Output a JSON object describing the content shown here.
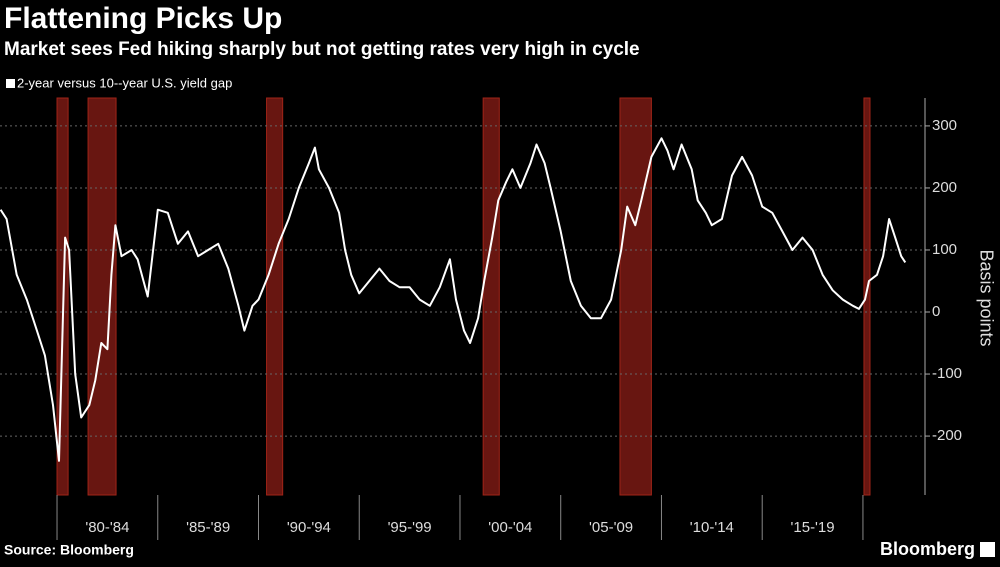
{
  "chart_data": {
    "type": "line",
    "title": "Flattening Picks Up",
    "subtitle": "Market sees Fed hiking sharply but not getting rates very high in cycle",
    "y_label": "Basis points",
    "source": "Source: Bloomberg",
    "brand": "Bloomberg",
    "background": "#000000",
    "grid": true,
    "xlim": [
      1977.17,
      2023.08
    ],
    "ylim": [
      -295,
      345
    ],
    "yticks": [
      -200,
      -100,
      0,
      100,
      200,
      300
    ],
    "xticks": [
      {
        "value": 1982.5,
        "label": "'80-'84"
      },
      {
        "value": 1987.5,
        "label": "'85-'89"
      },
      {
        "value": 1992.5,
        "label": "'90-'94"
      },
      {
        "value": 1997.5,
        "label": "'95-'99"
      },
      {
        "value": 2002.5,
        "label": "'00-'04"
      },
      {
        "value": 2007.5,
        "label": "'05-'09"
      },
      {
        "value": 2012.5,
        "label": "'10-'14"
      },
      {
        "value": 2017.5,
        "label": "'15-'19"
      }
    ],
    "shaded_periods": [
      [
        1980.0,
        1980.55
      ],
      [
        1981.54,
        1982.93
      ],
      [
        1990.4,
        1991.2
      ],
      [
        2001.15,
        2001.95
      ],
      [
        2007.94,
        2009.5
      ],
      [
        2020.05,
        2020.35
      ]
    ],
    "shade_color": "#7a1a14",
    "series": [
      {
        "name": "2-year versus 10--year U.S. yield gap",
        "color": "#ffffff",
        "x": [
          1977.2,
          1977.5,
          1978.0,
          1978.5,
          1979.0,
          1979.4,
          1979.8,
          1980.1,
          1980.4,
          1980.6,
          1980.9,
          1981.2,
          1981.6,
          1981.9,
          1982.2,
          1982.5,
          1982.7,
          1982.9,
          1983.2,
          1983.7,
          1984.0,
          1984.5,
          1985.0,
          1985.5,
          1986.0,
          1986.5,
          1987.0,
          1987.5,
          1988.0,
          1988.5,
          1989.0,
          1989.3,
          1989.7,
          1990.0,
          1990.5,
          1991.0,
          1991.5,
          1992.0,
          1992.5,
          1992.8,
          1993.0,
          1993.5,
          1994.0,
          1994.3,
          1994.6,
          1995.0,
          1995.5,
          1996.0,
          1996.5,
          1997.0,
          1997.5,
          1998.0,
          1998.5,
          1999.0,
          1999.5,
          1999.8,
          2000.2,
          2000.5,
          2000.9,
          2001.2,
          2001.6,
          2001.9,
          2002.3,
          2002.6,
          2003.0,
          2003.5,
          2003.8,
          2004.2,
          2004.5,
          2005.0,
          2005.5,
          2006.0,
          2006.5,
          2007.0,
          2007.5,
          2008.0,
          2008.3,
          2008.7,
          2009.0,
          2009.5,
          2010.0,
          2010.3,
          2010.6,
          2011.0,
          2011.5,
          2011.8,
          2012.2,
          2012.5,
          2013.0,
          2013.5,
          2014.0,
          2014.5,
          2015.0,
          2015.5,
          2016.0,
          2016.5,
          2017.0,
          2017.5,
          2018.0,
          2018.5,
          2019.0,
          2019.5,
          2019.8,
          2020.1,
          2020.3,
          2020.7,
          2021.0,
          2021.3,
          2021.6,
          2021.9,
          2022.1
        ],
        "values": [
          165,
          150,
          60,
          20,
          -30,
          -70,
          -150,
          -240,
          120,
          100,
          -100,
          -170,
          -150,
          -110,
          -50,
          -60,
          60,
          140,
          90,
          100,
          85,
          25,
          165,
          160,
          110,
          130,
          90,
          100,
          110,
          70,
          10,
          -30,
          10,
          20,
          60,
          110,
          150,
          200,
          240,
          265,
          230,
          200,
          160,
          100,
          60,
          30,
          50,
          70,
          50,
          40,
          40,
          20,
          10,
          40,
          85,
          20,
          -30,
          -50,
          -10,
          50,
          120,
          180,
          210,
          230,
          200,
          240,
          270,
          240,
          200,
          130,
          50,
          10,
          -10,
          -10,
          20,
          100,
          170,
          140,
          180,
          250,
          280,
          260,
          230,
          270,
          230,
          180,
          160,
          140,
          150,
          220,
          250,
          220,
          170,
          160,
          130,
          100,
          120,
          100,
          60,
          35,
          20,
          10,
          5,
          20,
          50,
          60,
          90,
          150,
          120,
          90,
          80
        ]
      }
    ]
  }
}
